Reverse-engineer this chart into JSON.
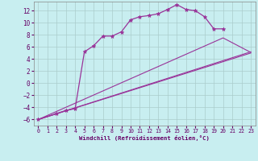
{
  "xlabel": "Windchill (Refroidissement éolien,°C)",
  "bg_color": "#c8eef0",
  "line_color": "#993399",
  "xlim": [
    -0.5,
    23.5
  ],
  "ylim": [
    -7,
    13.5
  ],
  "xticks": [
    0,
    1,
    2,
    3,
    4,
    5,
    6,
    7,
    8,
    9,
    10,
    11,
    12,
    13,
    14,
    15,
    16,
    17,
    18,
    19,
    20,
    21,
    22,
    23
  ],
  "yticks": [
    -6,
    -4,
    -2,
    0,
    2,
    4,
    6,
    8,
    10,
    12
  ],
  "curve_x": [
    0,
    2,
    3,
    4,
    5,
    6,
    7,
    8,
    9,
    10,
    11,
    12,
    13,
    14,
    15,
    16,
    17,
    18,
    19,
    20
  ],
  "curve_y": [
    -6,
    -5,
    -4.5,
    -4.2,
    5.2,
    6.2,
    7.8,
    7.8,
    8.5,
    10.5,
    11.0,
    11.2,
    11.5,
    12.2,
    13.0,
    12.2,
    12.0,
    11.0,
    9.0,
    9.0
  ],
  "line1_x": [
    0,
    23
  ],
  "line1_y": [
    -6,
    5.0
  ],
  "line2_x": [
    0,
    23
  ],
  "line2_y": [
    -6,
    5.2
  ],
  "line3_x": [
    0,
    20,
    23
  ],
  "line3_y": [
    -6,
    7.5,
    5.1
  ]
}
